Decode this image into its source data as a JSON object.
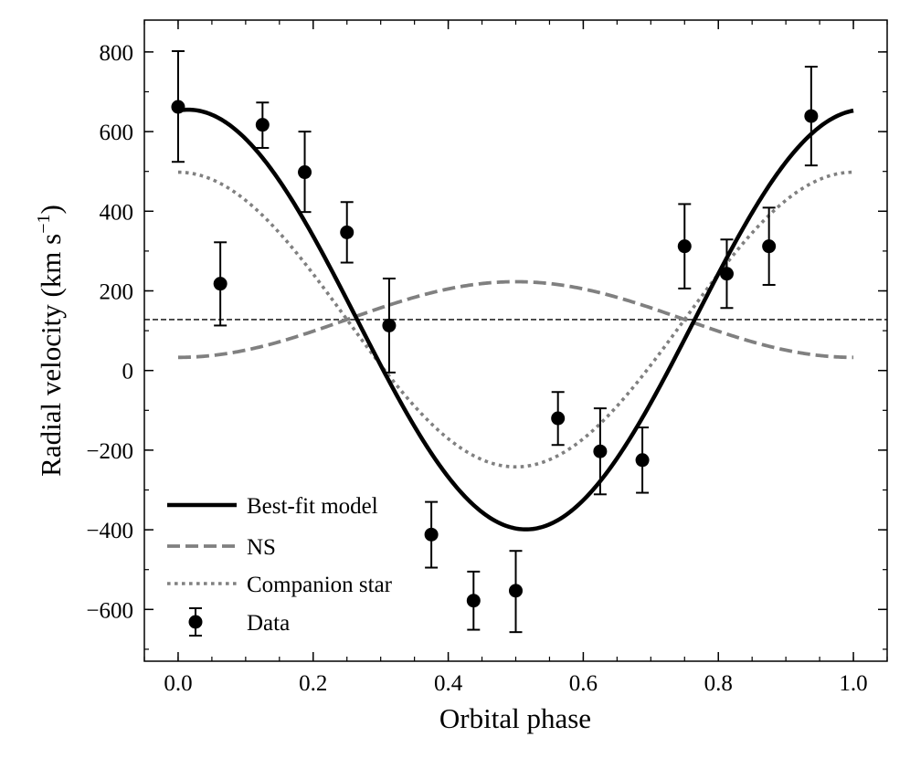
{
  "chart_data": {
    "type": "scatter",
    "xlabel": "Orbital phase",
    "ylabel": {
      "main": "Radial velocity (km s",
      "sup": "−1",
      "close": ")"
    },
    "xlim": [
      -0.05,
      1.05
    ],
    "ylim": [
      -730,
      880
    ],
    "x_ticks": [
      0.0,
      0.2,
      0.4,
      0.6,
      0.8,
      1.0
    ],
    "x_tick_labels": [
      "0.0",
      "0.2",
      "0.4",
      "0.6",
      "0.8",
      "1.0"
    ],
    "y_ticks": [
      -600,
      -400,
      -200,
      0,
      200,
      400,
      600,
      800
    ],
    "y_tick_labels": [
      "−600",
      "−400",
      "−200",
      "0",
      "200",
      "400",
      "600",
      "800"
    ],
    "x_minor_step": 0.05,
    "y_minor_step": 100,
    "systemic_velocity": 128,
    "models": [
      {
        "name": "Best-fit model",
        "gamma": 128,
        "amplitude": 527,
        "phi0": 0.015,
        "color": "#000000",
        "style": "solid"
      },
      {
        "name": "NS",
        "gamma": 128,
        "amplitude": -95,
        "phi0": 0.0,
        "color": "#808080",
        "style": "dashed"
      },
      {
        "name": "Companion star",
        "gamma": 128,
        "amplitude": 370,
        "phi0": 0.0,
        "color": "#808080",
        "style": "dotted"
      }
    ],
    "data_points": [
      {
        "x": 0.0,
        "y": 662,
        "yerr_low": 138,
        "yerr_high": 140
      },
      {
        "x": 0.0625,
        "y": 218,
        "yerr_low": 105,
        "yerr_high": 104
      },
      {
        "x": 0.125,
        "y": 617,
        "yerr_low": 58,
        "yerr_high": 56
      },
      {
        "x": 0.1875,
        "y": 498,
        "yerr_low": 100,
        "yerr_high": 102
      },
      {
        "x": 0.25,
        "y": 347,
        "yerr_low": 76,
        "yerr_high": 76
      },
      {
        "x": 0.3125,
        "y": 113,
        "yerr_low": 118,
        "yerr_high": 118
      },
      {
        "x": 0.375,
        "y": -412,
        "yerr_low": 83,
        "yerr_high": 82
      },
      {
        "x": 0.4375,
        "y": -578,
        "yerr_low": 73,
        "yerr_high": 73
      },
      {
        "x": 0.5,
        "y": -553,
        "yerr_low": 104,
        "yerr_high": 100
      },
      {
        "x": 0.5625,
        "y": -120,
        "yerr_low": 67,
        "yerr_high": 66
      },
      {
        "x": 0.625,
        "y": -203,
        "yerr_low": 108,
        "yerr_high": 108
      },
      {
        "x": 0.6875,
        "y": -225,
        "yerr_low": 82,
        "yerr_high": 82
      },
      {
        "x": 0.75,
        "y": 312,
        "yerr_low": 106,
        "yerr_high": 106
      },
      {
        "x": 0.8125,
        "y": 243,
        "yerr_low": 86,
        "yerr_high": 86
      },
      {
        "x": 0.875,
        "y": 312,
        "yerr_low": 97,
        "yerr_high": 97
      },
      {
        "x": 0.9375,
        "y": 639,
        "yerr_low": 124,
        "yerr_high": 124
      }
    ],
    "legend": {
      "placement": "lower-left",
      "entries": [
        {
          "label": "Best-fit model",
          "kind": "solid"
        },
        {
          "label": "NS",
          "kind": "dashed"
        },
        {
          "label": "Companion star",
          "kind": "dotted"
        },
        {
          "label": "Data",
          "kind": "errorbar"
        }
      ]
    }
  }
}
